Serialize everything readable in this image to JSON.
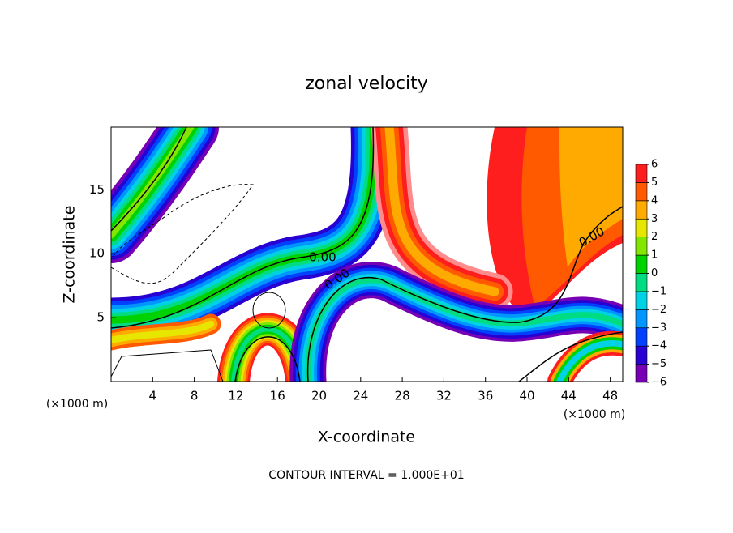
{
  "chart_data": {
    "type": "contour",
    "title": "zonal velocity",
    "x_label": "X-coordinate",
    "y_label": "Z-coordinate",
    "x_unit_left": "(×1000 m)",
    "x_unit_right": "(×1000 m)",
    "xlim": [
      0,
      49.2
    ],
    "ylim": [
      0,
      19.9
    ],
    "xticks": [
      4,
      8,
      12,
      16,
      20,
      24,
      28,
      32,
      36,
      40,
      44,
      48
    ],
    "yticks": [
      5,
      10,
      15
    ],
    "contour_labels": [
      "0.00",
      "0.00",
      "0.00"
    ],
    "footer": "CONTOUR INTERVAL = 1.000E+01",
    "colorbar": {
      "ticks": [
        {
          "value": -6,
          "label": "−6"
        },
        {
          "value": -5,
          "label": "−5"
        },
        {
          "value": -4,
          "label": "−4"
        },
        {
          "value": -3,
          "label": "−3"
        },
        {
          "value": -2,
          "label": "−2"
        },
        {
          "value": -1,
          "label": "−1"
        },
        0,
        1,
        2,
        3,
        4,
        5,
        6
      ],
      "colors": [
        "#7800b4",
        "#2800d2",
        "#0040ff",
        "#0096ff",
        "#00d2e6",
        "#00dc82",
        "#00d200",
        "#82e600",
        "#e6e600",
        "#ffaa00",
        "#ff5a00",
        "#ff1e1e",
        "#ff8c8c"
      ]
    }
  }
}
